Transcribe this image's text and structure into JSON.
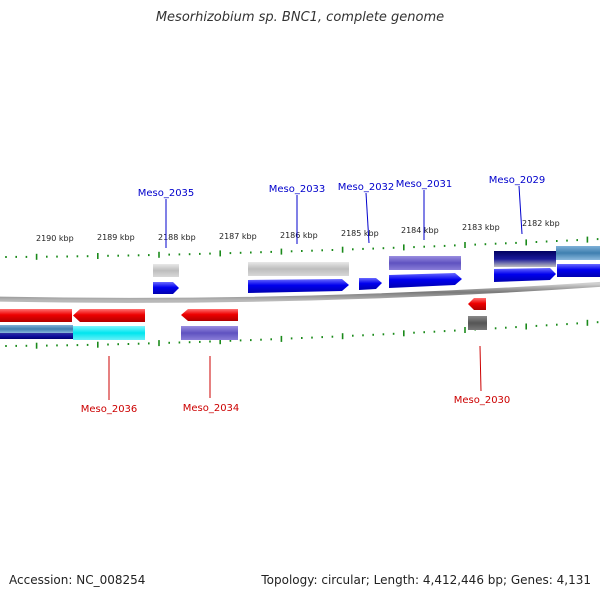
{
  "title": "Mesorhizobium sp. BNC1, complete genome",
  "footer": {
    "accession": "Accession: NC_008254",
    "topology": "Topology: circular; Length: 4,412,446 bp; Genes: 4,131"
  },
  "scale_labels": [
    "2190 kbp",
    "2189 kbp",
    "2188 kbp",
    "2187 kbp",
    "2186 kbp",
    "2185 kbp",
    "2184 kbp",
    "2183 kbp",
    "2182 kbp"
  ],
  "gene_labels": {
    "top": [
      "Meso_2035",
      "Meso_2033",
      "Meso_2032",
      "Meso_2031",
      "Meso_2029"
    ],
    "bottom": [
      "Meso_2036",
      "Meso_2034",
      "Meso_2030"
    ]
  },
  "colors": {
    "forward_strand": "#0000ee",
    "reverse_strand": "#ee0000",
    "forward_label": "#0000cc",
    "reverse_label": "#cc0000",
    "tick": "#1a8a1a",
    "backbone": "#808080",
    "homolog_light": "#c8c8c8",
    "homolog_purple": "#6a5acd",
    "homolog_navy": "#000080",
    "homolog_steel": "#4682b4",
    "homolog_cyan": "#00e5ee",
    "homolog_dark": "#555555"
  }
}
